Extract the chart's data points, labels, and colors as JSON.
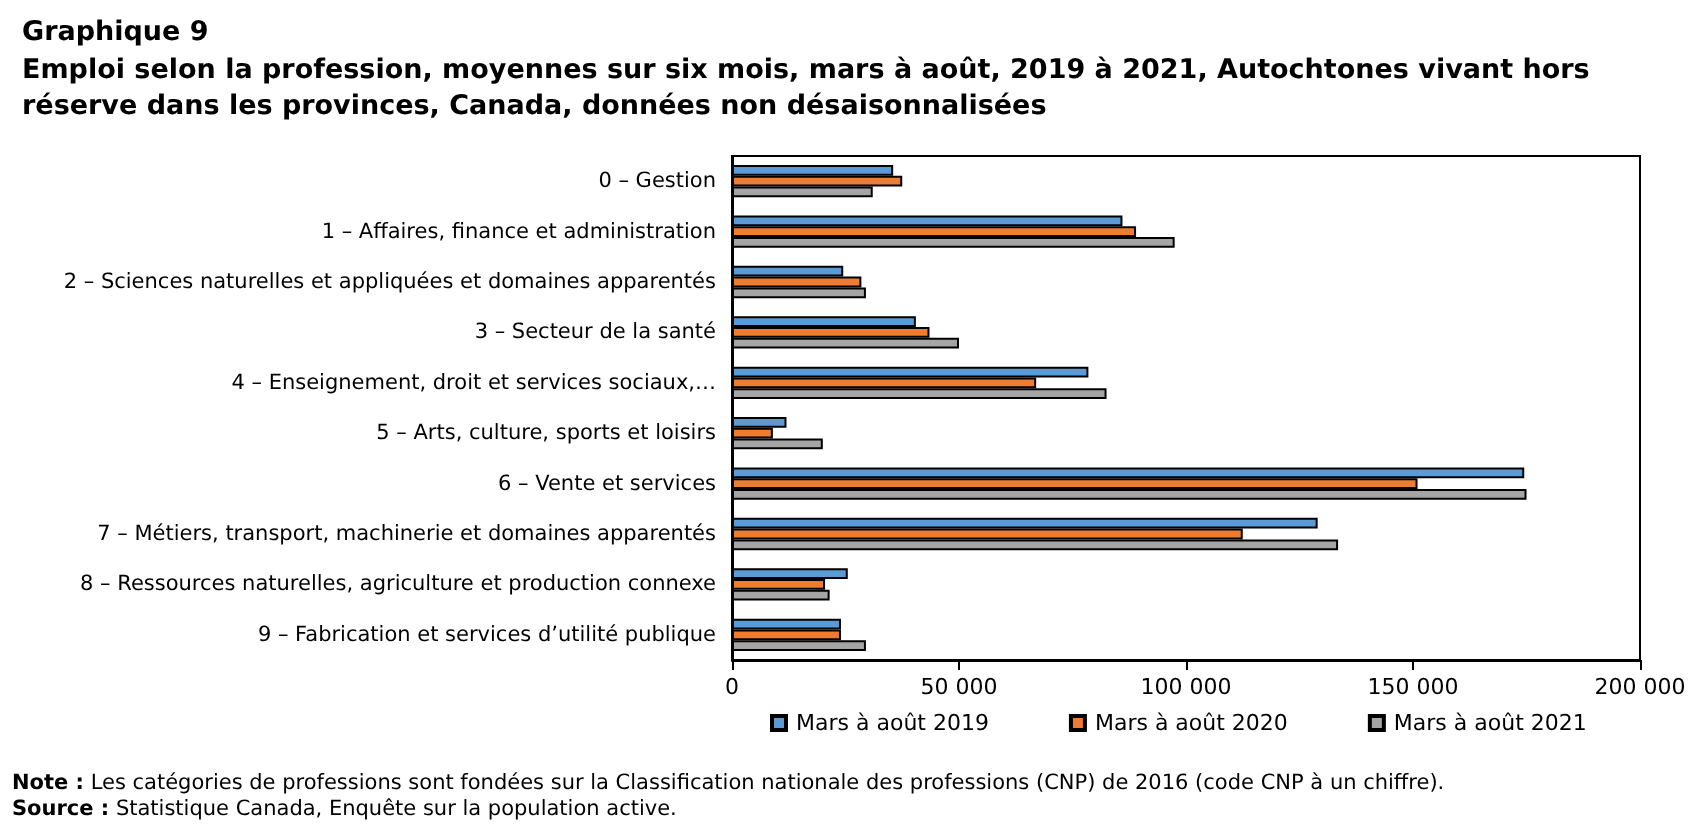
{
  "chart_data": {
    "type": "bar",
    "orientation": "horizontal",
    "title": "Graphique 9",
    "subtitle": "Emploi selon la profession, moyennes sur six mois, mars à août, 2019 à 2021, Autochtones vivant hors réserve dans les provinces, Canada, données non désaisonnalisées",
    "categories": [
      "0 – Gestion",
      "1 – Affaires, finance et administration",
      "2 – Sciences naturelles et appliquées et domaines apparentés",
      "3 – Secteur de la santé",
      "4 – Enseignement, droit et services sociaux,…",
      "5 – Arts, culture, sports et loisirs",
      "6 – Vente et services",
      "7 – Métiers, transport, machinerie et domaines apparentés",
      "8 – Ressources naturelles, agriculture et production connexe",
      "9 – Fabrication et services d’utilité publique"
    ],
    "series": [
      {
        "name": "Mars à août 2019",
        "color": "#5b9bd5",
        "values": [
          35500,
          86000,
          24500,
          40500,
          78500,
          12000,
          174500,
          129000,
          25500,
          24000
        ]
      },
      {
        "name": "Mars à août 2020",
        "color": "#ed7d31",
        "values": [
          37500,
          89000,
          28500,
          43500,
          67000,
          9000,
          151000,
          112500,
          20500,
          24000
        ]
      },
      {
        "name": "Mars à août 2021",
        "color": "#a5a5a5",
        "values": [
          31000,
          97500,
          29500,
          50000,
          82500,
          20000,
          175000,
          133500,
          21500,
          29500
        ]
      }
    ],
    "xlim": [
      0,
      200000
    ],
    "xticks": [
      0,
      {
        "value": 50000,
        "label": "50 000"
      },
      {
        "value": 100000,
        "label": "100 000"
      },
      {
        "value": 150000,
        "label": "150 000"
      },
      {
        "value": 200000,
        "label": "200 000"
      }
    ],
    "grid": false,
    "legend": "bottom",
    "annotations": [
      "Note : Les catégories de professions sont fondées sur la Classification nationale des professions (CNP) de 2016 (code CNP à un chiffre).",
      "Source : Statistique Canada, Enquête sur la population active."
    ]
  }
}
